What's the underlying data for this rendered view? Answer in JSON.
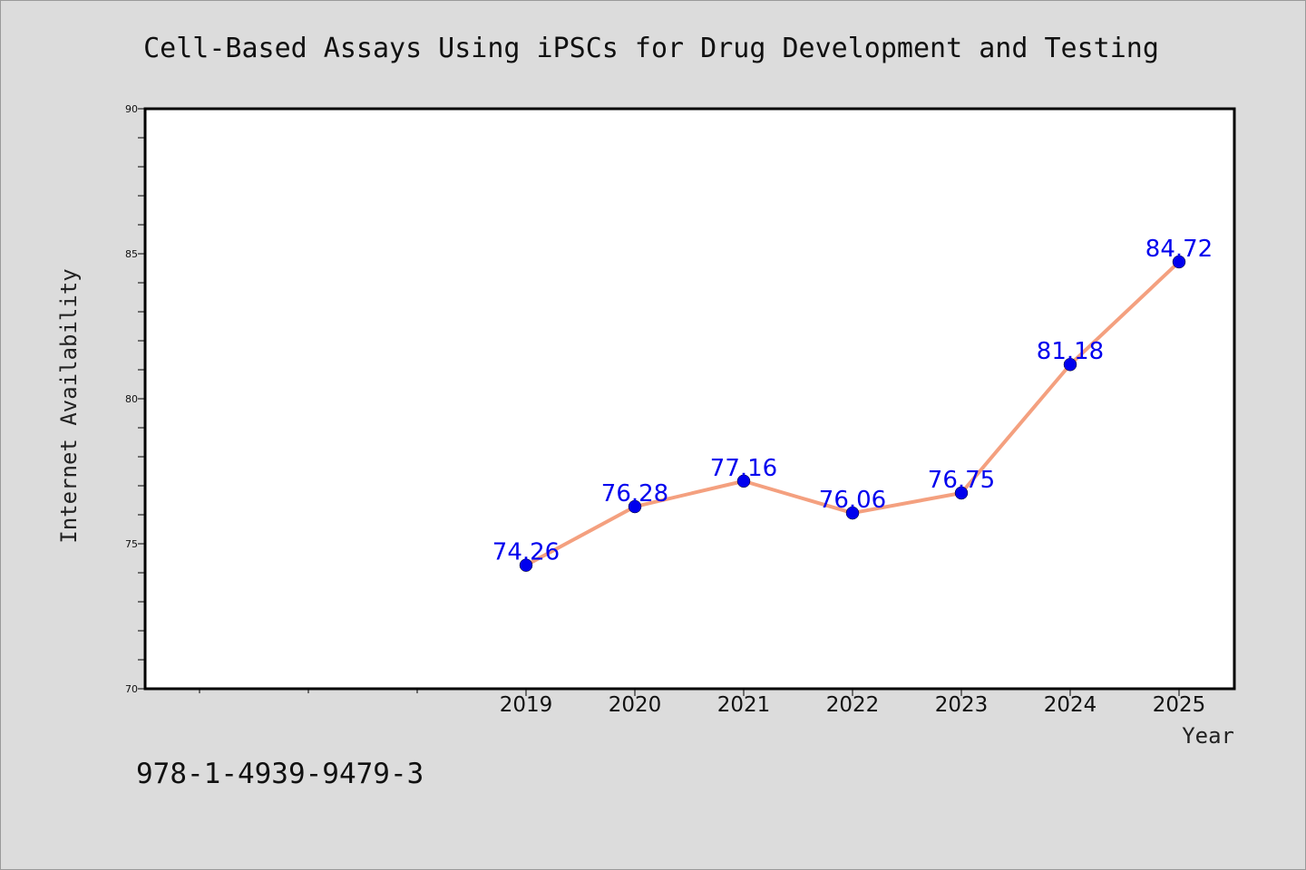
{
  "chart_data": {
    "type": "line",
    "title": "Cell-Based Assays Using iPSCs for Drug Development and Testing",
    "xlabel": "Year",
    "ylabel": "Internet Availability",
    "x": [
      "2019",
      "2020",
      "2021",
      "2022",
      "2023",
      "2024",
      "2025"
    ],
    "series": [
      {
        "values": [
          74.26,
          76.28,
          77.16,
          76.06,
          76.75,
          81.18,
          84.72
        ],
        "labels": [
          "74.26",
          "76.28",
          "77.16",
          "76.06",
          "76.75",
          "81.18",
          "84.72"
        ]
      }
    ],
    "ylim": [
      70,
      90
    ],
    "yticks": [
      "70",
      "75",
      "80",
      "85",
      "90"
    ],
    "grid": false,
    "line_color": "#f4a07f",
    "marker_color": "#0000ee",
    "label_color": "#0000ee",
    "background": "#dcdcdc",
    "plot_background": "#ffffff"
  },
  "footer_text": "978-1-4939-9479-3"
}
